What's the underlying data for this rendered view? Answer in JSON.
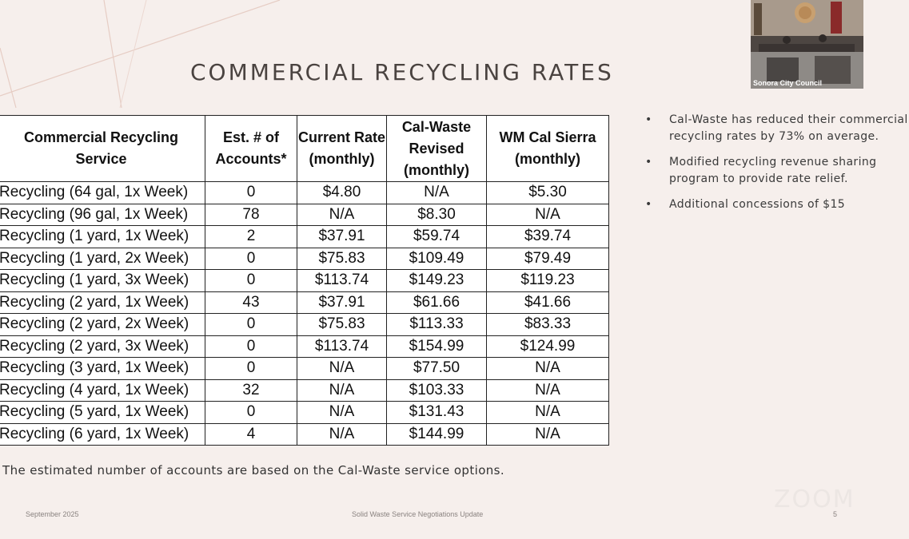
{
  "slide": {
    "title": "COMMERCIAL RECYCLING RATES",
    "footnote": "The estimated number of accounts are based on the Cal-Waste service options.",
    "footer_left": "September 2025",
    "footer_center": "Solid Waste Service Negotiations Update",
    "footer_page": "5"
  },
  "table": {
    "headers": [
      "Commercial Recycling Service",
      "Est. # of Accounts*",
      "Current Rate (monthly)",
      "Cal-Waste Revised (monthly)",
      "WM Cal Sierra (monthly)"
    ],
    "rows": [
      [
        "Recycling (64 gal, 1x Week)",
        "0",
        "$4.80",
        "N/A",
        "$5.30"
      ],
      [
        "Recycling (96 gal, 1x Week)",
        "78",
        "N/A",
        "$8.30",
        "N/A"
      ],
      [
        "Recycling (1 yard, 1x Week)",
        "2",
        "$37.91",
        "$59.74",
        "$39.74"
      ],
      [
        "Recycling (1 yard, 2x Week)",
        "0",
        "$75.83",
        "$109.49",
        "$79.49"
      ],
      [
        "Recycling (1 yard, 3x Week)",
        "0",
        "$113.74",
        "$149.23",
        "$119.23"
      ],
      [
        "Recycling (2 yard, 1x Week)",
        "43",
        "$37.91",
        "$61.66",
        "$41.66"
      ],
      [
        "Recycling (2 yard, 2x Week)",
        "0",
        "$75.83",
        "$113.33",
        "$83.33"
      ],
      [
        "Recycling (2 yard, 3x Week)",
        "0",
        "$113.74",
        "$154.99",
        "$124.99"
      ],
      [
        "Recycling (3 yard, 1x Week)",
        "0",
        "N/A",
        "$77.50",
        "N/A"
      ],
      [
        "Recycling (4 yard, 1x Week)",
        "32",
        "N/A",
        "$103.33",
        "N/A"
      ],
      [
        "Recycling (5 yard, 1x Week)",
        "0",
        "N/A",
        "$131.43",
        "N/A"
      ],
      [
        "Recycling (6 yard, 1x Week)",
        "4",
        "N/A",
        "$144.99",
        "N/A"
      ]
    ]
  },
  "bullets": [
    "Cal-Waste has reduced their commercial recycling rates by 73% on average.",
    "Modified recycling revenue sharing program to provide rate relief.",
    "Additional concessions of $15"
  ],
  "video": {
    "label": "Sonora City Council"
  },
  "watermark": "ZOOM",
  "colors": {
    "background": "#f6efec",
    "accent_lines": "#e2c6bd"
  }
}
